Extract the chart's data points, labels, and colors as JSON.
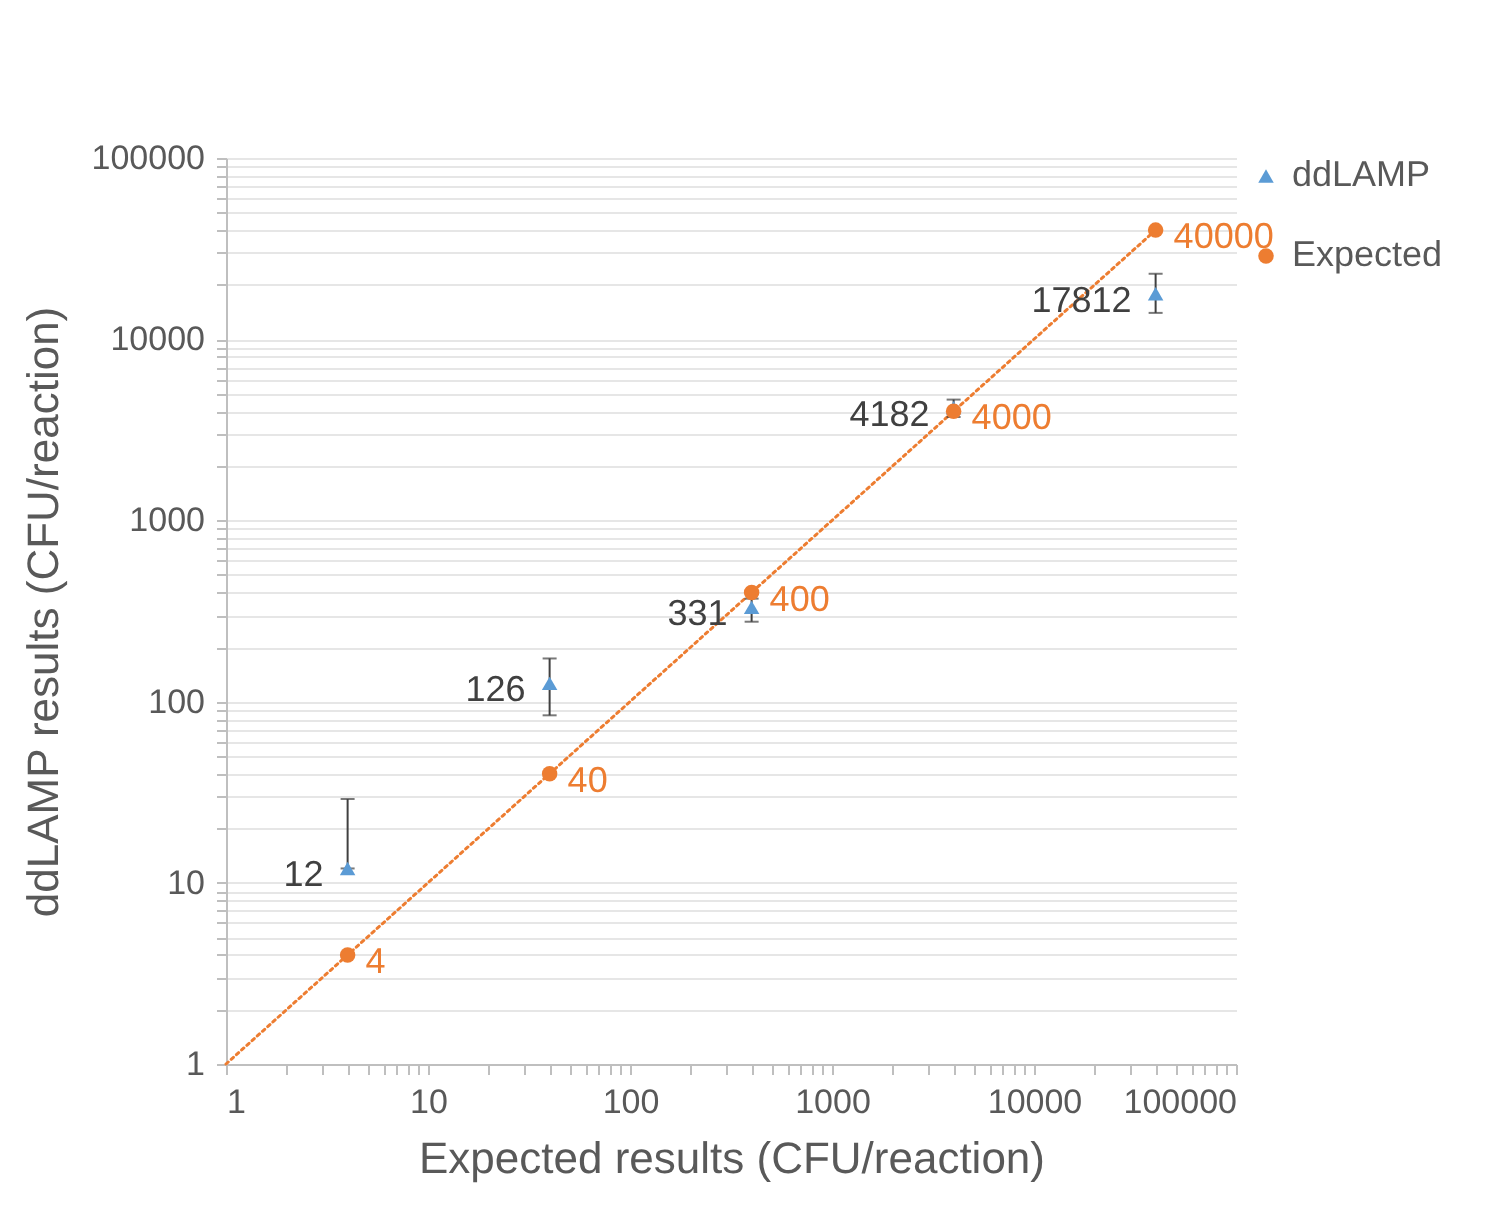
{
  "chart_data": {
    "type": "scatter",
    "xlabel": "Expected  results (CFU/reaction)",
    "ylabel": "ddLAMP results (CFU/reaction)",
    "log": "xy",
    "xlim": [
      1,
      100000
    ],
    "ylim": [
      1,
      100000
    ],
    "xticks": [
      1,
      {
        "value": 2,
        "label": null
      },
      {
        "value": 3,
        "label": null
      },
      {
        "value": 4,
        "label": null
      },
      {
        "value": 5,
        "label": null
      },
      {
        "value": 6,
        "label": null
      },
      {
        "value": 7,
        "label": null
      },
      {
        "value": 8,
        "label": null
      },
      {
        "value": 9,
        "label": null
      },
      10,
      {
        "value": 20,
        "label": null
      },
      {
        "value": 30,
        "label": null
      },
      {
        "value": 40,
        "label": null
      },
      {
        "value": 50,
        "label": null
      },
      {
        "value": 60,
        "label": null
      },
      {
        "value": 70,
        "label": null
      },
      {
        "value": 80,
        "label": null
      },
      {
        "value": 90,
        "label": null
      },
      100,
      {
        "value": 200,
        "label": null
      },
      {
        "value": 300,
        "label": null
      },
      {
        "value": 400,
        "label": null
      },
      {
        "value": 500,
        "label": null
      },
      {
        "value": 600,
        "label": null
      },
      {
        "value": 700,
        "label": null
      },
      {
        "value": 800,
        "label": null
      },
      {
        "value": 900,
        "label": null
      },
      1000,
      {
        "value": 2000,
        "label": null
      },
      {
        "value": 3000,
        "label": null
      },
      {
        "value": 4000,
        "label": null
      },
      {
        "value": 5000,
        "label": null
      },
      {
        "value": 6000,
        "label": null
      },
      {
        "value": 7000,
        "label": null
      },
      {
        "value": 8000,
        "label": null
      },
      {
        "value": 9000,
        "label": null
      },
      10000,
      {
        "value": 20000,
        "label": null
      },
      {
        "value": 30000,
        "label": null
      },
      {
        "value": 40000,
        "label": null
      },
      {
        "value": 50000,
        "label": null
      },
      {
        "value": 60000,
        "label": null
      },
      {
        "value": 70000,
        "label": null
      },
      {
        "value": 80000,
        "label": null
      },
      {
        "value": 90000,
        "label": null
      },
      100000
    ],
    "yticks": [
      1,
      {
        "value": 2,
        "label": null
      },
      {
        "value": 3,
        "label": null
      },
      {
        "value": 4,
        "label": null
      },
      {
        "value": 5,
        "label": null
      },
      {
        "value": 6,
        "label": null
      },
      {
        "value": 7,
        "label": null
      },
      {
        "value": 8,
        "label": null
      },
      {
        "value": 9,
        "label": null
      },
      10,
      {
        "value": 20,
        "label": null
      },
      {
        "value": 30,
        "label": null
      },
      {
        "value": 40,
        "label": null
      },
      {
        "value": 50,
        "label": null
      },
      {
        "value": 60,
        "label": null
      },
      {
        "value": 70,
        "label": null
      },
      {
        "value": 80,
        "label": null
      },
      {
        "value": 90,
        "label": null
      },
      100,
      {
        "value": 200,
        "label": null
      },
      {
        "value": 300,
        "label": null
      },
      {
        "value": 400,
        "label": null
      },
      {
        "value": 500,
        "label": null
      },
      {
        "value": 600,
        "label": null
      },
      {
        "value": 700,
        "label": null
      },
      {
        "value": 800,
        "label": null
      },
      {
        "value": 900,
        "label": null
      },
      1000,
      {
        "value": 2000,
        "label": null
      },
      {
        "value": 3000,
        "label": null
      },
      {
        "value": 4000,
        "label": null
      },
      {
        "value": 5000,
        "label": null
      },
      {
        "value": 6000,
        "label": null
      },
      {
        "value": 7000,
        "label": null
      },
      {
        "value": 8000,
        "label": null
      },
      {
        "value": 9000,
        "label": null
      },
      10000,
      {
        "value": 20000,
        "label": null
      },
      {
        "value": 30000,
        "label": null
      },
      {
        "value": 40000,
        "label": null
      },
      {
        "value": 50000,
        "label": null
      },
      {
        "value": 60000,
        "label": null
      },
      {
        "value": 70000,
        "label": null
      },
      {
        "value": 80000,
        "label": null
      },
      {
        "value": 90000,
        "label": null
      },
      100000
    ],
    "grid": "y",
    "legend": "right",
    "data_labels": true,
    "x": [
      4,
      40,
      400,
      4000,
      40000
    ],
    "series": [
      {
        "name": "ddLAMP",
        "color": "#5b9bd5",
        "marker": "triangle",
        "values": [
          12,
          126,
          331,
          4182,
          17812
        ],
        "errors": [
          [
            12,
            29
          ],
          [
            84,
            173
          ],
          [
            276,
            370
          ],
          460,
          [
            13970,
            22970
          ]
        ]
      },
      {
        "name": "Expected",
        "color": "#ed7d31",
        "marker": "circle",
        "values": [
          4,
          40,
          400,
          4000,
          40000
        ]
      },
      {
        "type": "line",
        "x": [
          1,
          40000
        ],
        "values": [
          1,
          40000
        ],
        "value_labels": [
          null,
          null
        ],
        "color": "#ed7d31",
        "line_style": "dotted"
      }
    ]
  }
}
